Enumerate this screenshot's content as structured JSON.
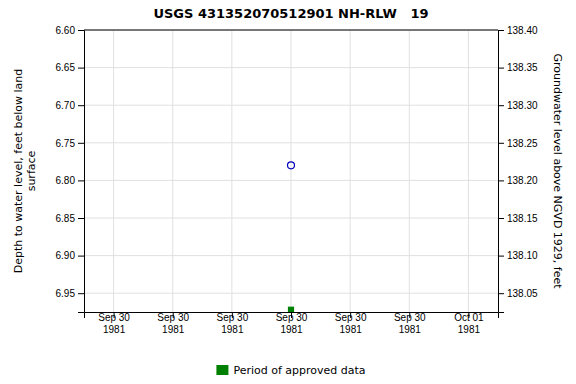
{
  "chart_data": {
    "type": "scatter",
    "title": "USGS 431352070512901 NH-RLW   19",
    "y_label": "Depth to water level, feet below land\nsurface",
    "y2_label": "Groundwater level above NGVD 1929, feet",
    "categories": [
      "Sep 30\n1981",
      "Sep 30\n1981",
      "Sep 30\n1981",
      "Sep 30\n1981",
      "Sep 30\n1981",
      "Sep 30\n1981",
      "Oct 01\n1981"
    ],
    "series": [
      {
        "color": "#0000bb",
        "marker": "open-circle",
        "values": [
          null,
          null,
          null,
          6.78,
          null,
          null,
          null
        ]
      },
      {
        "name": "Period of approved data",
        "color": "#008000",
        "marker": "square",
        "values": [
          null,
          null,
          null,
          6.972,
          null,
          null,
          null
        ]
      }
    ],
    "ylim": [
      6.975,
      6.6
    ],
    "yticks": [
      {
        "value": 6.6,
        "label": "6.60"
      },
      6.65,
      {
        "value": 6.7,
        "label": "6.70"
      },
      6.75,
      {
        "value": 6.8,
        "label": "6.80"
      },
      6.85,
      {
        "value": 6.9,
        "label": "6.90"
      },
      6.95
    ],
    "y2lim": [
      138.025,
      138.4
    ],
    "y2ticks": [
      {
        "value": 138.4,
        "label": "138.40"
      },
      138.35,
      {
        "value": 138.3,
        "label": "138.30"
      },
      138.25,
      {
        "value": 138.2,
        "label": "138.20"
      },
      138.15,
      {
        "value": 138.1,
        "label": "138.10"
      },
      138.05
    ],
    "grid": true,
    "legend": "bottom"
  }
}
